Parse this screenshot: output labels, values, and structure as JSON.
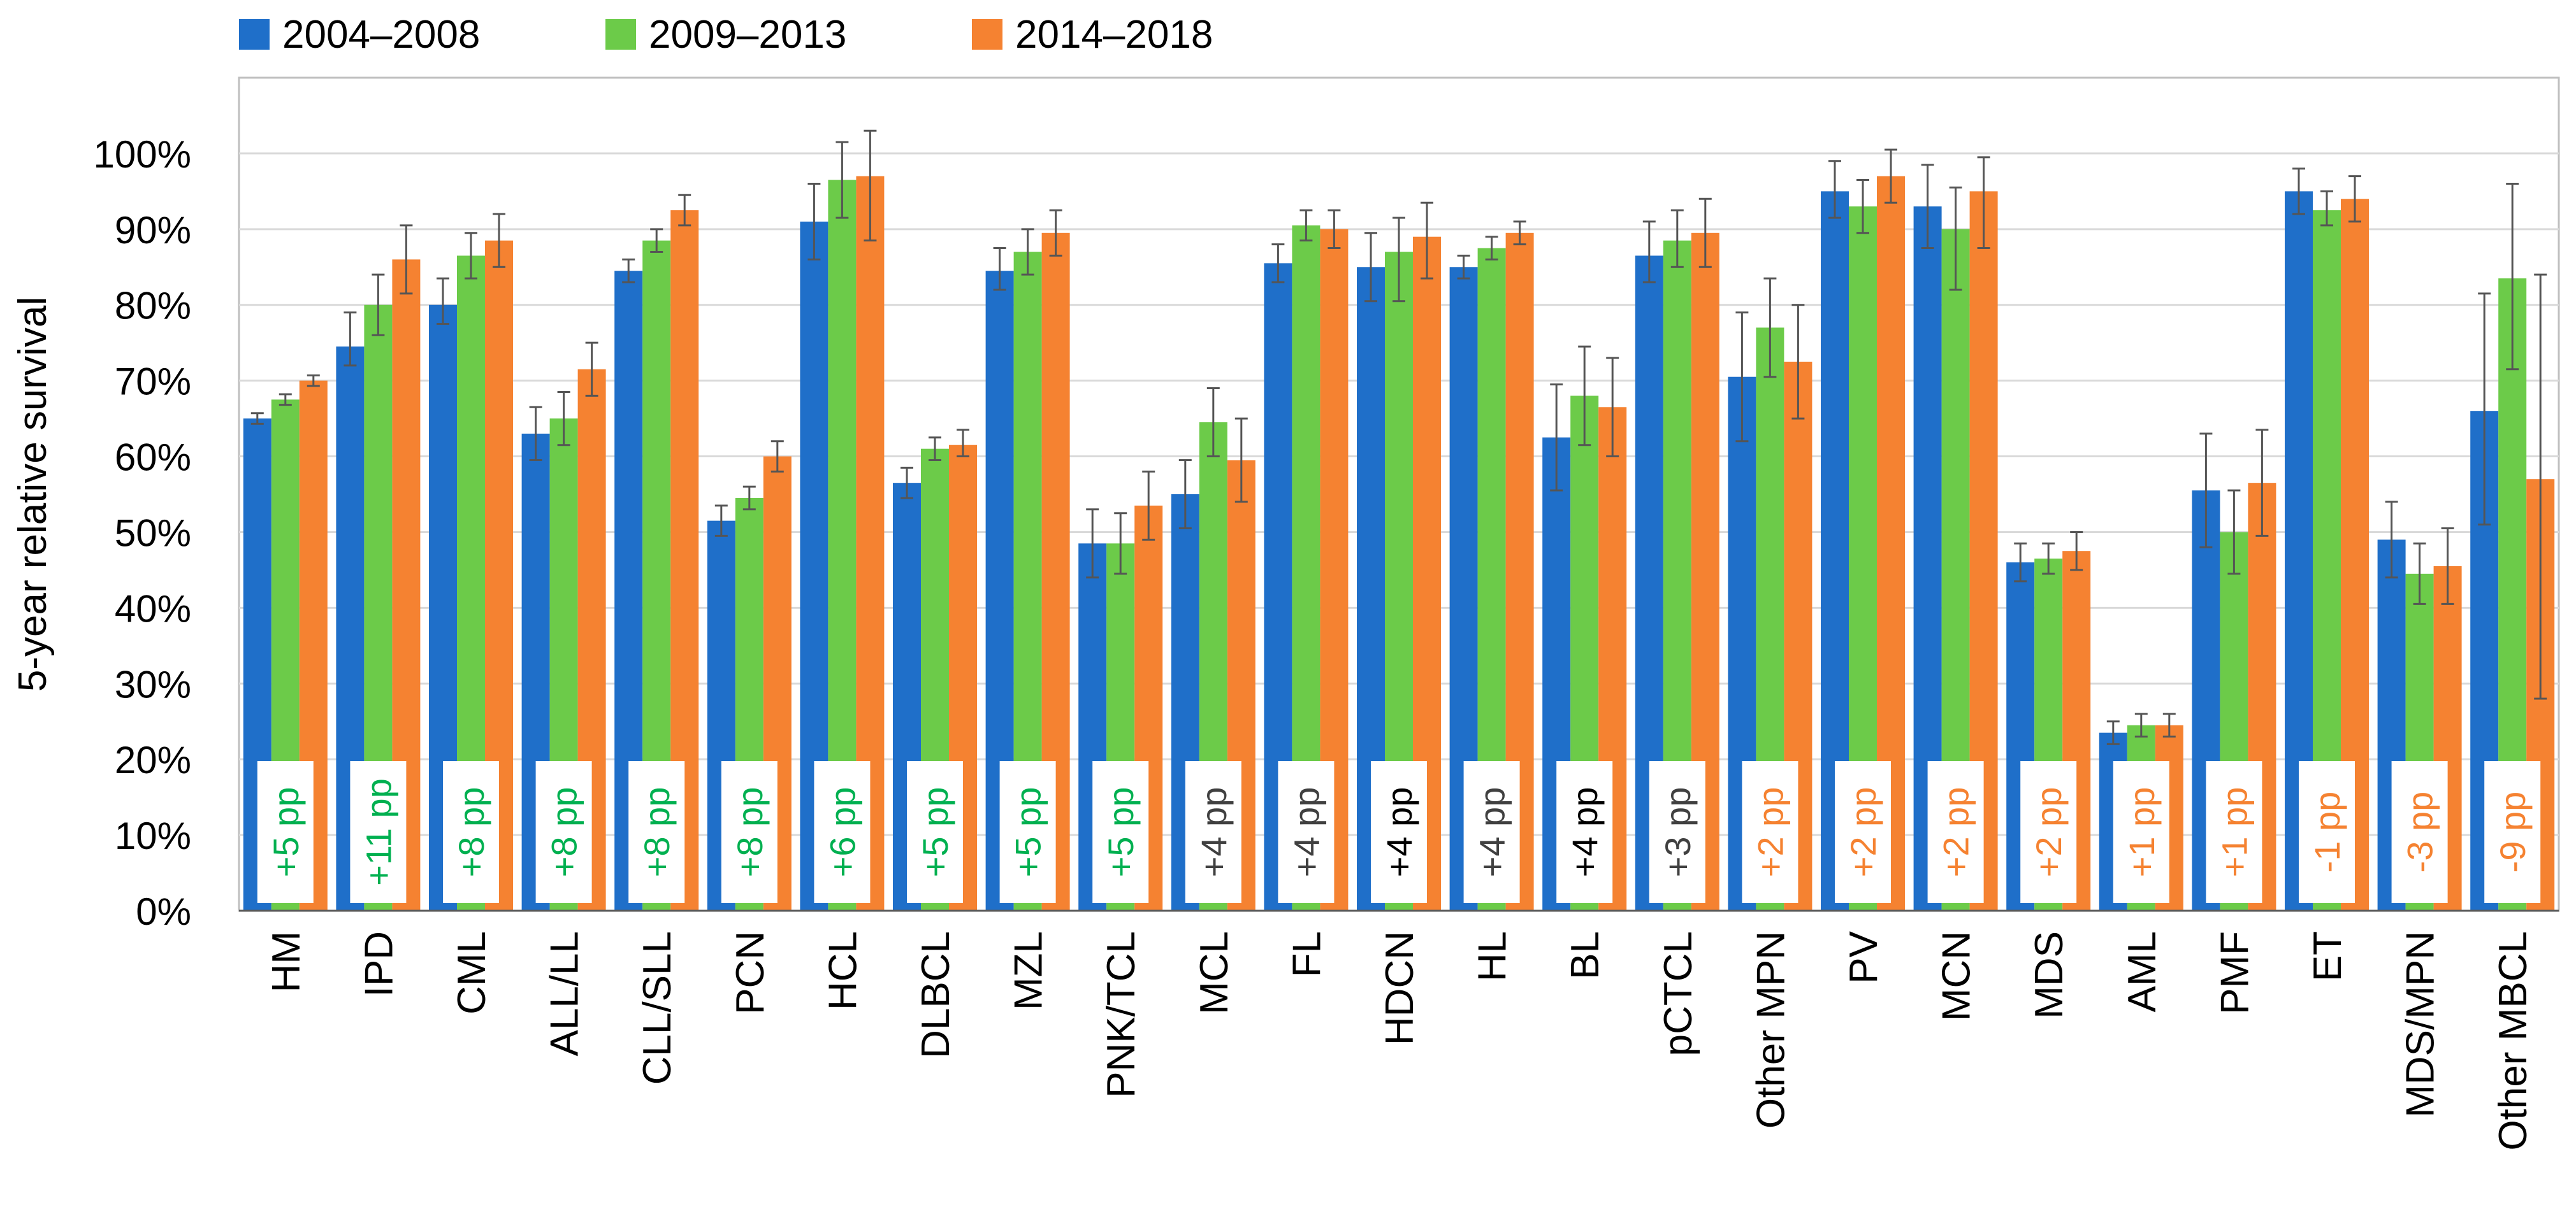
{
  "chart_data": {
    "type": "bar",
    "ylabel": "5-year relative survival",
    "xlabel": "",
    "ylim": [
      0,
      110
    ],
    "yticks": [
      0,
      10,
      20,
      30,
      40,
      50,
      60,
      70,
      80,
      90,
      100
    ],
    "ytick_suffix": "%",
    "grid": true,
    "legend_position": "top-left",
    "categories": [
      "HM",
      "IPD",
      "CML",
      "ALL/LL",
      "CLL/SLL",
      "PCN",
      "HCL",
      "DLBCL",
      "MZL",
      "PNK/TCL",
      "MCL",
      "FL",
      "HDCN",
      "HL",
      "BL",
      "pCTCL",
      "Other MPN",
      "PV",
      "MCN",
      "MDS",
      "AML",
      "PMF",
      "ET",
      "MDS/MPN",
      "Other MBCL"
    ],
    "series": [
      {
        "name": "2004–2008",
        "color": "#1F6FC9",
        "values": [
          65,
          74.5,
          80,
          63,
          84.5,
          51.5,
          91,
          56.5,
          84.5,
          48.5,
          55,
          85.5,
          85,
          85,
          62.5,
          86.5,
          70.5,
          95,
          93,
          46,
          23.5,
          55.5,
          95,
          49,
          66
        ],
        "err_low": [
          0.7,
          2.5,
          2.5,
          3.5,
          1.5,
          2,
          5,
          2,
          2.5,
          4.5,
          4.5,
          2.5,
          4.5,
          1.5,
          7,
          3.5,
          8.5,
          3.5,
          5.5,
          2.5,
          1.5,
          7.5,
          3,
          5,
          15
        ],
        "err_high": [
          0.7,
          4.5,
          3.5,
          3.5,
          1.5,
          2,
          5,
          2,
          3,
          4.5,
          4.5,
          2.5,
          4.5,
          1.5,
          7,
          4.5,
          8.5,
          4,
          5.5,
          2.5,
          1.5,
          7.5,
          3,
          5,
          15.5
        ]
      },
      {
        "name": "2009–2013",
        "color": "#6CCB49",
        "values": [
          67.5,
          80,
          86.5,
          65,
          88.5,
          54.5,
          96.5,
          61,
          87,
          48.5,
          64.5,
          90.5,
          87,
          87.5,
          68,
          88.5,
          77,
          93,
          90,
          46.5,
          24.5,
          50,
          92.5,
          44.5,
          83.5
        ],
        "err_low": [
          0.7,
          4,
          3,
          3.5,
          1.5,
          1.5,
          5,
          1.5,
          3,
          4,
          4.5,
          2,
          6.5,
          1.5,
          6.5,
          3.5,
          6.5,
          3.5,
          8,
          2,
          1.5,
          5.5,
          2,
          4,
          12
        ],
        "err_high": [
          0.7,
          4,
          3,
          3.5,
          1.5,
          1.5,
          5,
          1.5,
          3,
          4,
          4.5,
          2,
          4.5,
          1.5,
          6.5,
          4,
          6.5,
          3.5,
          5.5,
          2,
          1.5,
          5.5,
          2.5,
          4,
          12.5
        ]
      },
      {
        "name": "2014–2018",
        "color": "#F58231",
        "values": [
          70,
          86,
          88.5,
          71.5,
          92.5,
          60,
          97,
          61.5,
          89.5,
          53.5,
          59.5,
          90,
          89,
          89.5,
          66.5,
          89.5,
          72.5,
          97,
          95,
          47.5,
          24.5,
          56.5,
          94,
          45.5,
          57
        ],
        "err_low": [
          0.7,
          4.5,
          3.5,
          3.5,
          2,
          2,
          8.5,
          1.5,
          3,
          4.5,
          5.5,
          2.5,
          5.5,
          1.5,
          6.5,
          4.5,
          7.5,
          3.5,
          7.5,
          2.5,
          1.5,
          7,
          3,
          5,
          29
        ],
        "err_high": [
          0.7,
          4.5,
          3.5,
          3.5,
          2,
          2,
          6,
          2,
          3,
          4.5,
          5.5,
          2.5,
          4.5,
          1.5,
          6.5,
          4.5,
          7.5,
          3.5,
          4.5,
          2.5,
          1.5,
          7,
          3,
          5,
          27
        ]
      }
    ],
    "annotations": [
      {
        "label": "+5 pp",
        "color": "#00B050"
      },
      {
        "label": "+11 pp",
        "color": "#00B050"
      },
      {
        "label": "+8 pp",
        "color": "#00B050"
      },
      {
        "label": "+8 pp",
        "color": "#00B050"
      },
      {
        "label": "+8 pp",
        "color": "#00B050"
      },
      {
        "label": "+8 pp",
        "color": "#00B050"
      },
      {
        "label": "+6 pp",
        "color": "#00B050"
      },
      {
        "label": "+5 pp",
        "color": "#00B050"
      },
      {
        "label": "+5 pp",
        "color": "#00B050"
      },
      {
        "label": "+5 pp",
        "color": "#00B050"
      },
      {
        "label": "+4 pp",
        "color": "#404040"
      },
      {
        "label": "+4 pp",
        "color": "#404040"
      },
      {
        "label": "+4 pp",
        "color": "#000000"
      },
      {
        "label": "+4 pp",
        "color": "#404040"
      },
      {
        "label": "+4 pp",
        "color": "#000000"
      },
      {
        "label": "+3 pp",
        "color": "#404040"
      },
      {
        "label": "+2 pp",
        "color": "#F58231"
      },
      {
        "label": "+2 pp",
        "color": "#F58231"
      },
      {
        "label": "+2 pp",
        "color": "#F58231"
      },
      {
        "label": "+2 pp",
        "color": "#F58231"
      },
      {
        "label": "+1 pp",
        "color": "#F58231"
      },
      {
        "label": "+1 pp",
        "color": "#F58231"
      },
      {
        "label": "-1 pp",
        "color": "#F58231"
      },
      {
        "label": "-3 pp",
        "color": "#F58231"
      },
      {
        "label": "-9 pp",
        "color": "#F58231"
      }
    ]
  }
}
